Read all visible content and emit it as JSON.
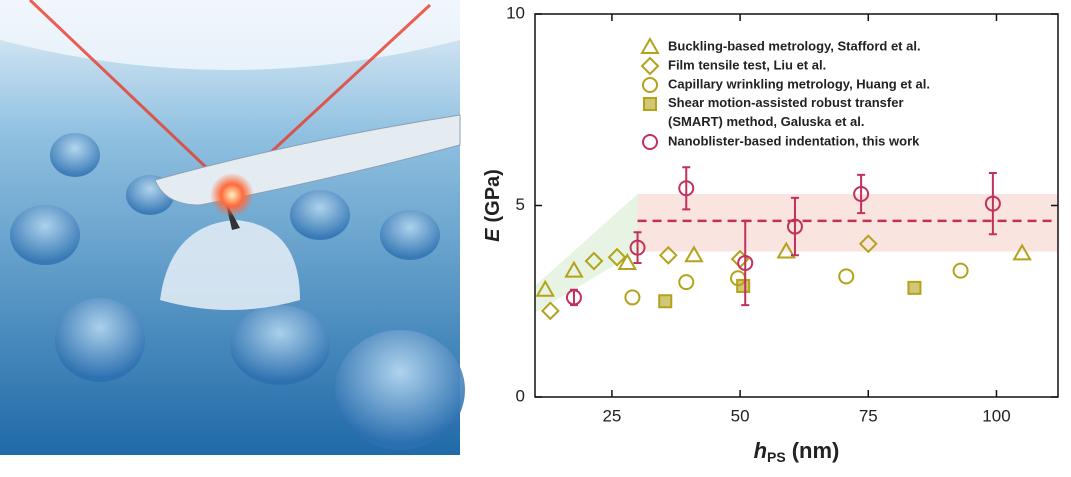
{
  "chart_data": {
    "type": "scatter",
    "xlabel": {
      "symbol": "h",
      "subscript": "PS",
      "unit": "(nm)"
    },
    "ylabel": {
      "symbol": "E",
      "unit": "(GPa)"
    },
    "xlim": [
      10,
      112
    ],
    "xticks": [
      25,
      50,
      75,
      100
    ],
    "ylim": [
      0,
      10
    ],
    "yticks": [
      0,
      5,
      10
    ],
    "legend": "top-right",
    "series": [
      {
        "name": "Buckling-based metrology, Stafford et al.",
        "marker": "triangle",
        "color": "#b3a21a",
        "x": [
          12,
          17.6,
          28,
          41,
          59,
          105
        ],
        "values": [
          2.8,
          3.3,
          3.5,
          3.7,
          3.8,
          3.75
        ]
      },
      {
        "name": "Film tensile test, Liu et al.",
        "marker": "diamond",
        "color": "#b3a21a",
        "x": [
          13,
          21.5,
          26,
          36,
          50,
          75
        ],
        "values": [
          2.25,
          3.55,
          3.65,
          3.7,
          3.6,
          4.0
        ]
      },
      {
        "name": "Capillary wrinkling metrology, Huang et al.",
        "marker": "circle",
        "color": "#b3a21a",
        "x": [
          29,
          39.5,
          49.6,
          70.7,
          93
        ],
        "values": [
          2.6,
          3.0,
          3.1,
          3.15,
          3.3
        ]
      },
      {
        "name": "Shear motion-assisted robust transfer (SMART) method, Galuska et al.",
        "marker": "square",
        "color": "#b3a21a",
        "x": [
          35.4,
          50.6,
          84
        ],
        "values": [
          2.5,
          2.9,
          2.85
        ]
      },
      {
        "name": "Nanoblister-based indentation, this work",
        "marker": "circle",
        "color": "#c2305c",
        "x": [
          17.6,
          30,
          39.5,
          51,
          60.7,
          73.6,
          99.3
        ],
        "values": [
          2.6,
          3.9,
          5.45,
          3.5,
          4.45,
          5.3,
          5.05
        ],
        "errors": [
          0.2,
          0.4,
          0.55,
          1.1,
          0.75,
          0.5,
          0.8
        ]
      }
    ],
    "mean_line": {
      "value": 4.6,
      "x_from": 30,
      "color": "#c2305c"
    },
    "band": {
      "low": 3.8,
      "high": 5.3,
      "x_from": 30
    }
  }
}
